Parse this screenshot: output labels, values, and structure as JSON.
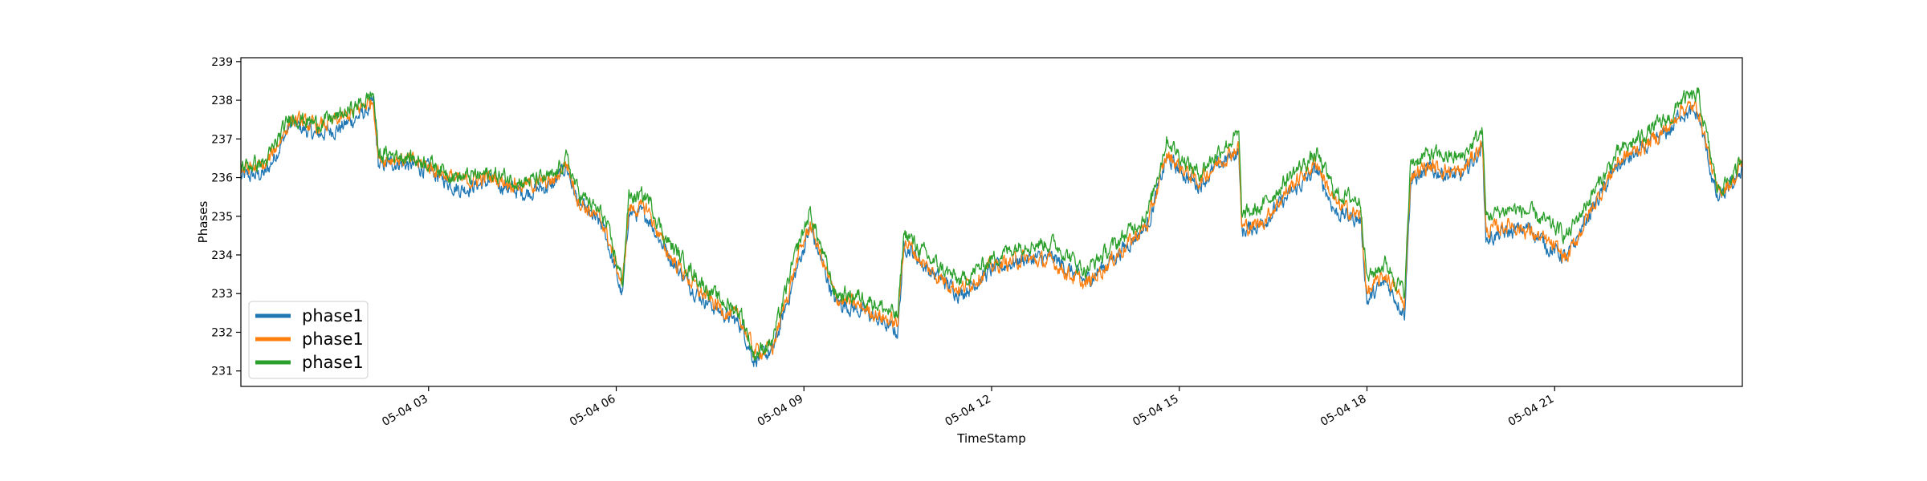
{
  "chart_data": {
    "type": "line",
    "title": "",
    "xlabel": "TimeStamp",
    "ylabel": "Phases",
    "x_start": "05-04 00:00",
    "x_end": "05-04 24:00",
    "x_unit": "hours since 05-04 00:00",
    "xlim": [
      0,
      24
    ],
    "ylim": [
      230.6,
      239.1
    ],
    "x_ticks": [
      {
        "x": 3,
        "label": "05-04 03"
      },
      {
        "x": 6,
        "label": "05-04 06"
      },
      {
        "x": 9,
        "label": "05-04 09"
      },
      {
        "x": 12,
        "label": "05-04 12"
      },
      {
        "x": 15,
        "label": "05-04 15"
      },
      {
        "x": 18,
        "label": "05-04 18"
      },
      {
        "x": 21,
        "label": "05-04 21"
      }
    ],
    "y_ticks": [
      231,
      232,
      233,
      234,
      235,
      236,
      237,
      238,
      239
    ],
    "grid": false,
    "legend_position": "bottom-left",
    "x": [
      0.0,
      0.4,
      0.8,
      1.2,
      1.6,
      2.0,
      2.12,
      2.2,
      2.5,
      3.0,
      3.5,
      4.0,
      4.5,
      5.0,
      5.2,
      5.4,
      5.8,
      6.1,
      6.2,
      6.5,
      6.8,
      7.0,
      7.3,
      7.6,
      8.0,
      8.2,
      8.5,
      8.9,
      9.1,
      9.5,
      10.0,
      10.5,
      10.6,
      11.0,
      11.5,
      12.0,
      12.5,
      13.0,
      13.5,
      14.0,
      14.5,
      14.8,
      15.0,
      15.3,
      15.7,
      15.95,
      16.0,
      16.3,
      16.8,
      17.2,
      17.5,
      17.9,
      18.0,
      18.3,
      18.6,
      18.7,
      19.0,
      19.5,
      19.85,
      19.9,
      20.3,
      20.6,
      20.9,
      21.2,
      21.5,
      22.0,
      22.5,
      22.9,
      23.0,
      23.3,
      23.6,
      23.9,
      24.0
    ],
    "series": [
      {
        "name": "phase1",
        "color": "#1f77b4",
        "values": [
          236.0,
          236.1,
          237.4,
          237.1,
          237.3,
          237.7,
          237.9,
          236.3,
          236.4,
          236.2,
          235.7,
          235.9,
          235.6,
          235.8,
          236.3,
          235.3,
          234.7,
          232.9,
          235.1,
          235.0,
          234.1,
          233.6,
          233.0,
          232.6,
          232.2,
          231.3,
          231.5,
          233.7,
          234.7,
          232.8,
          232.5,
          232.0,
          234.3,
          233.6,
          233.0,
          233.6,
          233.9,
          233.9,
          233.3,
          234.0,
          234.8,
          236.5,
          236.2,
          235.8,
          236.4,
          236.7,
          234.6,
          234.8,
          235.6,
          236.2,
          235.1,
          234.9,
          232.8,
          233.3,
          232.5,
          235.9,
          236.2,
          236.0,
          236.8,
          234.4,
          234.6,
          234.7,
          234.2,
          233.9,
          234.9,
          236.3,
          236.8,
          237.3,
          237.7,
          237.6,
          235.4,
          235.9,
          236.3
        ]
      },
      {
        "name": "phase1",
        "color": "#ff7f0e",
        "values": [
          236.2,
          236.3,
          237.5,
          237.3,
          237.5,
          237.9,
          238.0,
          236.5,
          236.5,
          236.3,
          235.9,
          236.0,
          235.8,
          235.9,
          236.4,
          235.4,
          234.8,
          233.2,
          235.2,
          235.2,
          234.1,
          233.7,
          233.1,
          232.7,
          232.3,
          231.5,
          231.6,
          233.9,
          234.8,
          232.9,
          232.6,
          232.2,
          234.4,
          233.6,
          233.1,
          233.7,
          233.9,
          233.8,
          233.2,
          234.0,
          234.8,
          236.6,
          236.3,
          235.9,
          236.5,
          236.8,
          234.7,
          234.8,
          235.8,
          236.4,
          235.3,
          235.0,
          233.0,
          233.5,
          232.7,
          236.1,
          236.3,
          236.1,
          236.9,
          234.6,
          234.8,
          234.6,
          234.3,
          233.9,
          234.9,
          236.4,
          236.9,
          237.4,
          237.8,
          237.8,
          235.6,
          236.0,
          236.4
        ]
      },
      {
        "name": "phase1",
        "color": "#2ca02c",
        "values": [
          236.3,
          236.4,
          237.6,
          237.4,
          237.6,
          238.0,
          238.2,
          236.6,
          236.6,
          236.4,
          236.0,
          236.1,
          235.9,
          236.0,
          236.5,
          235.6,
          235.0,
          233.3,
          235.5,
          235.5,
          234.4,
          234.0,
          233.4,
          232.9,
          232.5,
          231.4,
          231.8,
          234.2,
          235.1,
          233.0,
          232.9,
          232.4,
          234.6,
          233.9,
          233.3,
          233.9,
          234.3,
          234.3,
          233.6,
          234.3,
          235.1,
          237.0,
          236.6,
          236.1,
          236.8,
          237.1,
          235.0,
          235.2,
          236.1,
          236.6,
          235.6,
          235.4,
          233.4,
          233.8,
          233.0,
          236.4,
          236.6,
          236.5,
          237.2,
          235.0,
          235.2,
          235.1,
          234.8,
          234.5,
          235.3,
          236.6,
          237.2,
          237.6,
          238.0,
          238.1,
          235.7,
          236.1,
          236.6
        ]
      }
    ]
  }
}
